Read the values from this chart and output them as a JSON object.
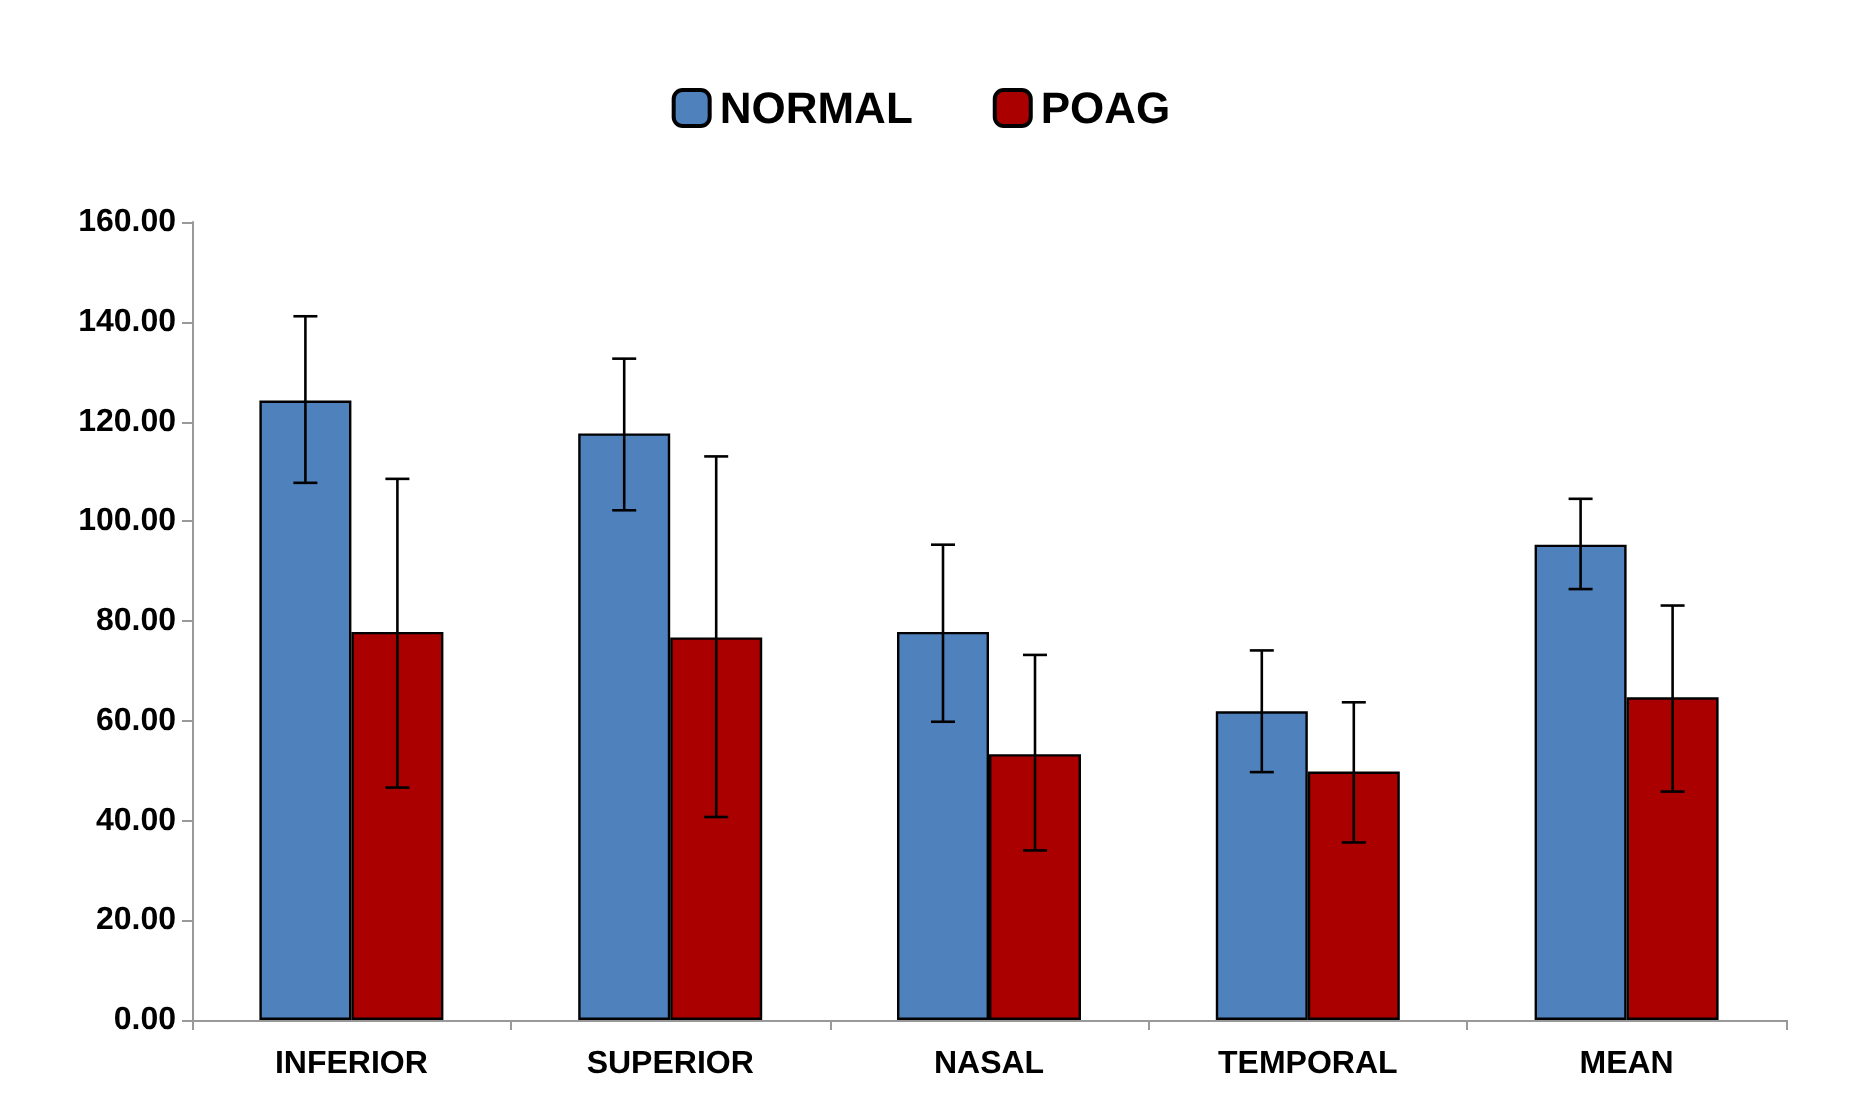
{
  "chart_data": {
    "type": "bar",
    "categories": [
      "INFERIOR",
      "SUPERIOR",
      "NASAL",
      "TEMPORAL",
      "MEAN"
    ],
    "series": [
      {
        "name": "NORMAL",
        "color": "#4f81bd",
        "values": [
          124.2,
          117.6,
          77.8,
          61.9,
          95.3
        ],
        "errors": [
          [
            107.7,
            141.1
          ],
          [
            102.2,
            132.6
          ],
          [
            59.8,
            95.3
          ],
          [
            49.7,
            74.1
          ],
          [
            86.4,
            104.5
          ]
        ]
      },
      {
        "name": "POAG",
        "color": "#aa0000",
        "values": [
          77.8,
          76.7,
          53.3,
          49.8,
          64.7
        ],
        "errors": [
          [
            46.6,
            108.5
          ],
          [
            40.7,
            113.0
          ],
          [
            34.0,
            73.2
          ],
          [
            35.6,
            63.7
          ],
          [
            45.8,
            83.1
          ]
        ]
      }
    ],
    "ylim": [
      0,
      160
    ],
    "yticks": [
      {
        "value": 0,
        "label": "0.00"
      },
      {
        "value": 20,
        "label": "20.00"
      },
      {
        "value": 40,
        "label": "40.00"
      },
      {
        "value": 60,
        "label": "60.00"
      },
      {
        "value": 80,
        "label": "80.00"
      },
      {
        "value": 100,
        "label": "100.00"
      },
      {
        "value": 120,
        "label": "120.00"
      },
      {
        "value": 140,
        "label": "140.00"
      },
      {
        "value": 160,
        "label": "160.00"
      }
    ],
    "grid": false,
    "legend": "top"
  }
}
